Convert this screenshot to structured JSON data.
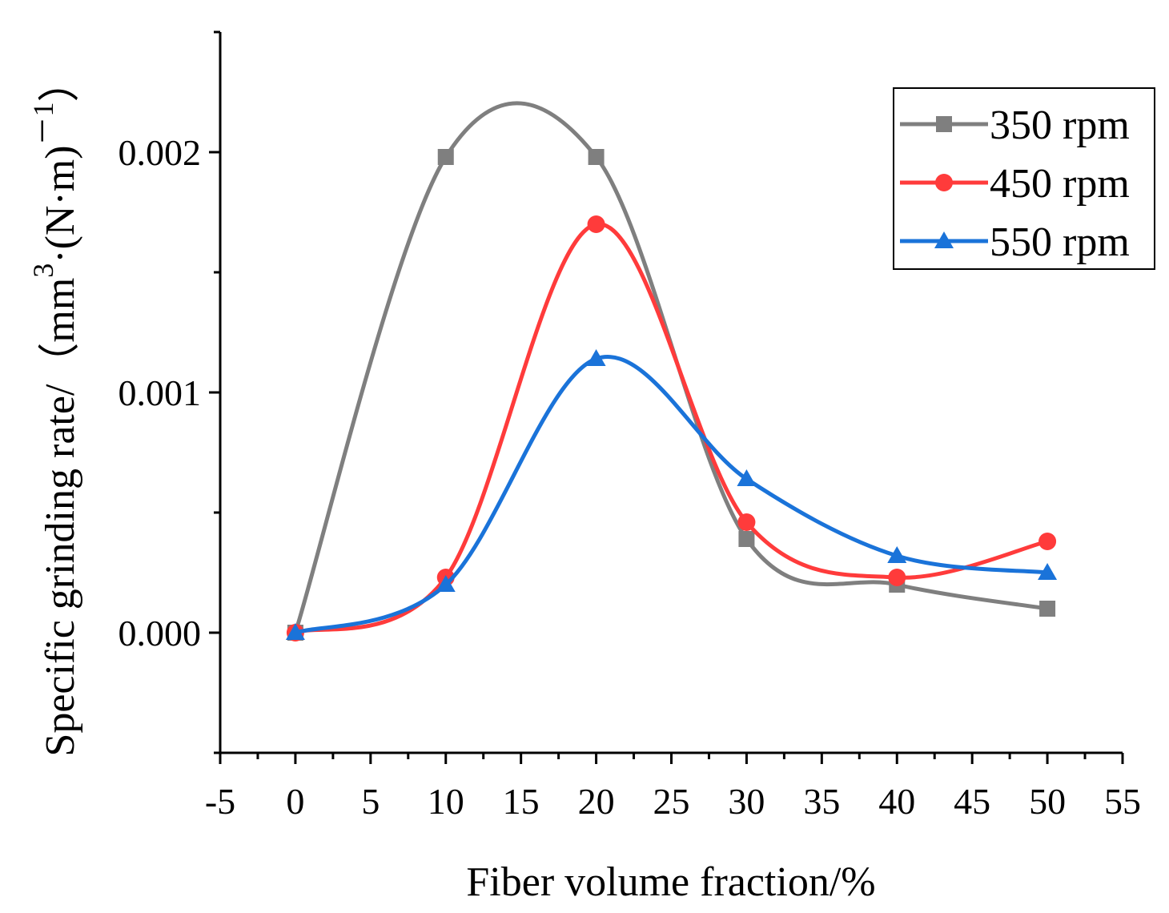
{
  "chart_data": {
    "type": "line",
    "title": "",
    "xlabel": "Fiber volume fraction/%",
    "ylabel_main": "Specific grinding rate/（mm",
    "ylabel_sup": "3",
    "ylabel_mid": "·(N·m)",
    "ylabel_sup2": "－1",
    "ylabel_end": "）",
    "xlim": [
      -5,
      55
    ],
    "ylim": [
      -0.0005,
      0.0025
    ],
    "xticks": [
      "-5",
      "0",
      "5",
      "10",
      "15",
      "20",
      "25",
      "30",
      "35",
      "40",
      "45",
      "50",
      "55"
    ],
    "yticks": [
      "0.000",
      "0.001",
      "0.002"
    ],
    "legend_position": "top-right",
    "series": [
      {
        "name": "350 rpm",
        "color": "#7f7f7f",
        "marker": "square",
        "x": [
          0,
          10,
          20,
          30,
          40,
          50
        ],
        "values": [
          0.0,
          0.00198,
          0.00198,
          0.00039,
          0.0002,
          0.0001
        ]
      },
      {
        "name": "450 rpm",
        "color": "#ff3b3b",
        "marker": "circle",
        "x": [
          0,
          10,
          20,
          30,
          40,
          50
        ],
        "values": [
          0.0,
          0.00023,
          0.0017,
          0.00046,
          0.00023,
          0.00038
        ]
      },
      {
        "name": "550 rpm",
        "color": "#1a73d9",
        "marker": "triangle",
        "x": [
          0,
          10,
          20,
          30,
          40,
          50
        ],
        "values": [
          0.0,
          0.0002,
          0.00114,
          0.00064,
          0.00032,
          0.00025
        ]
      }
    ]
  }
}
